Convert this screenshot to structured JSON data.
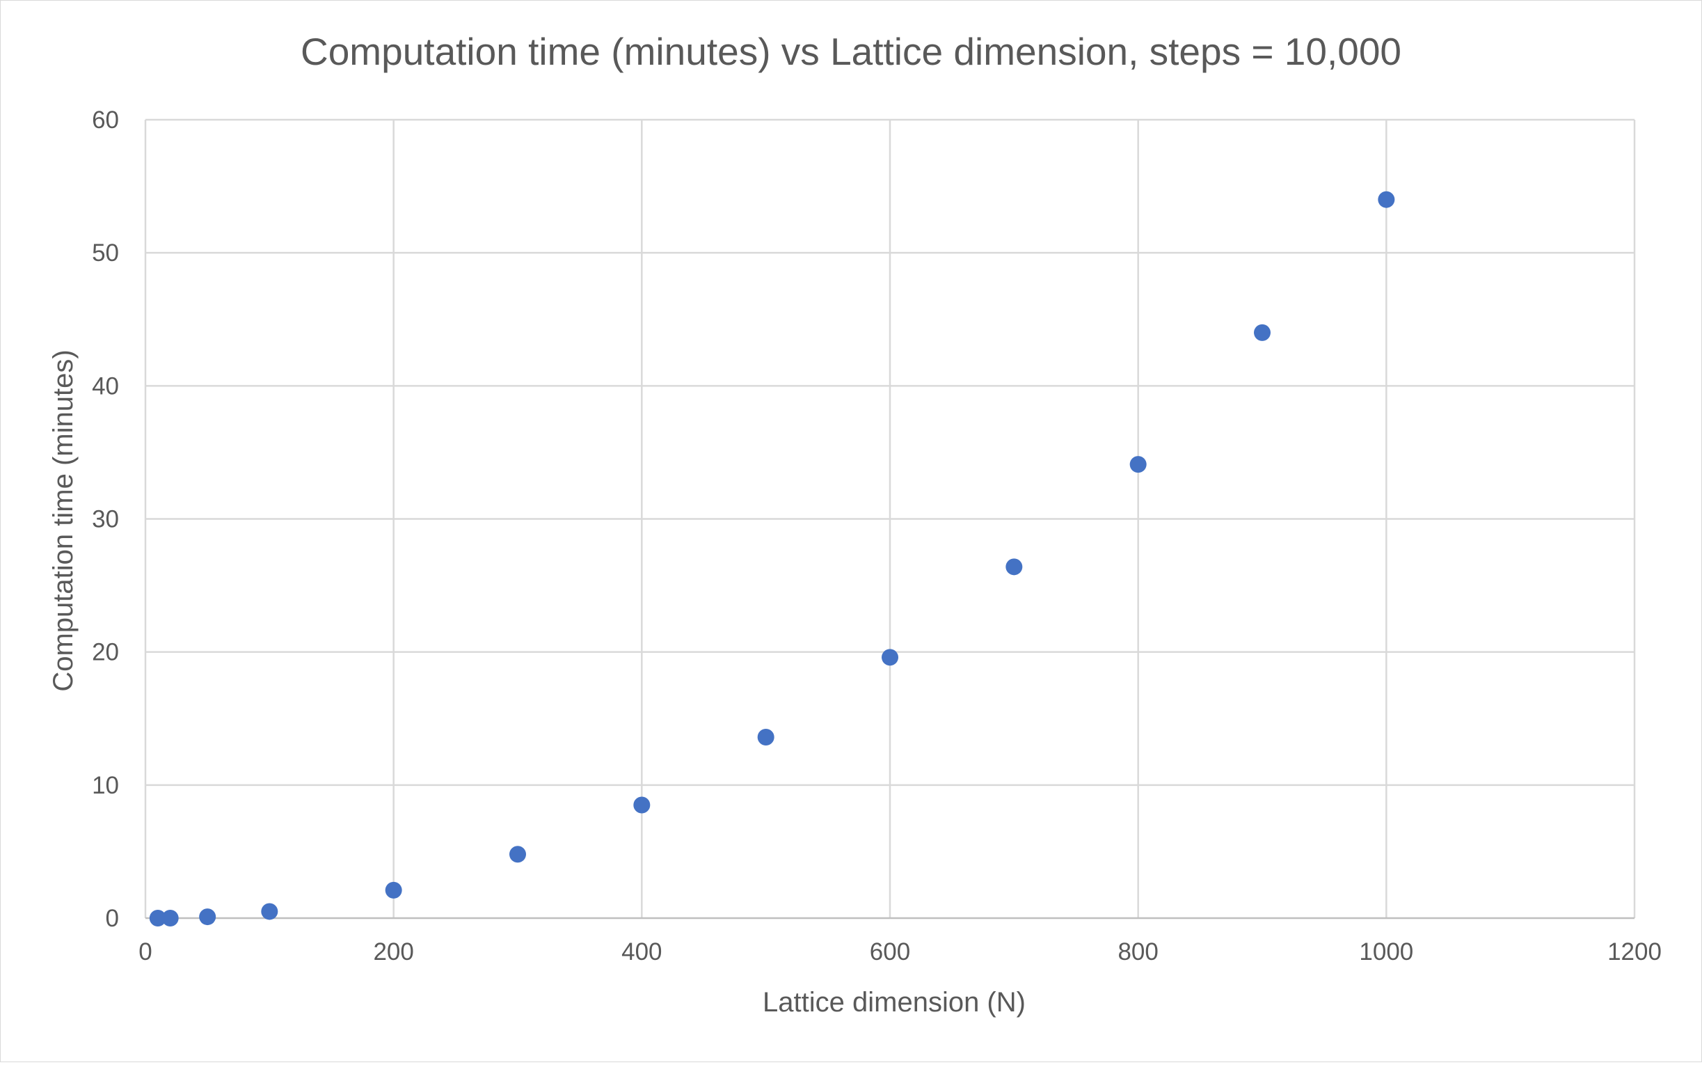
{
  "chart_data": {
    "type": "scatter",
    "title": "Computation time (minutes) vs Lattice dimension, steps = 10,000",
    "xlabel": "Lattice dimension (N)",
    "ylabel": "Computation time (minutes)",
    "xlim": [
      0,
      1200
    ],
    "ylim": [
      0,
      60
    ],
    "x_ticks": [
      "0",
      "200",
      "400",
      "600",
      "800",
      "1000",
      "1200"
    ],
    "y_ticks": [
      "0",
      "10",
      "20",
      "30",
      "40",
      "50",
      "60"
    ],
    "grid": true,
    "legend": "none",
    "marker_color": "#4472C4",
    "points": [
      {
        "x": 10,
        "y": 0.0
      },
      {
        "x": 20,
        "y": 0.0
      },
      {
        "x": 50,
        "y": 0.1
      },
      {
        "x": 100,
        "y": 0.5
      },
      {
        "x": 200,
        "y": 2.1
      },
      {
        "x": 300,
        "y": 4.8
      },
      {
        "x": 400,
        "y": 8.5
      },
      {
        "x": 500,
        "y": 13.6
      },
      {
        "x": 600,
        "y": 19.6
      },
      {
        "x": 700,
        "y": 26.4
      },
      {
        "x": 800,
        "y": 34.1
      },
      {
        "x": 900,
        "y": 44.0
      },
      {
        "x": 1000,
        "y": 54.0
      }
    ]
  }
}
